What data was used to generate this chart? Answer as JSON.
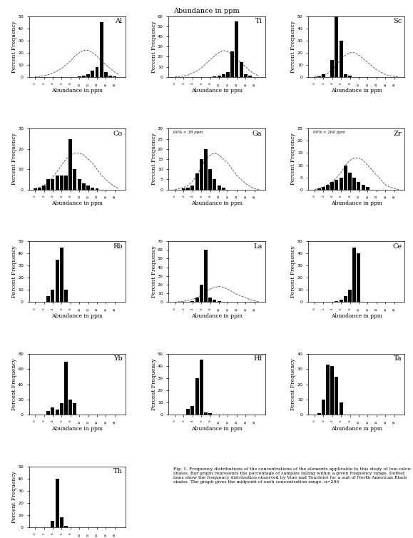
{
  "title_fontsize": 7,
  "axis_label_fontsize": 5.5,
  "tick_fontsize": 4.5,
  "element_fontsize": 7,
  "ylabel": "Percent Frequency",
  "xlabel": "Abundance in ppm",
  "plots": [
    {
      "element": "Al",
      "ylim": [
        0,
        50
      ],
      "yticks": [
        0,
        10,
        20,
        30,
        40,
        50
      ],
      "bar_values": [
        0,
        0,
        0,
        0,
        0,
        0,
        0,
        0,
        0,
        0,
        0.5,
        1,
        2,
        5,
        8,
        45,
        4,
        1,
        0.5,
        0
      ],
      "dot_values": [
        0,
        0.5,
        1,
        2,
        3,
        5,
        7,
        10,
        13,
        17,
        20,
        22,
        22,
        20,
        17,
        13,
        10,
        7,
        4,
        2
      ],
      "note": null,
      "row": 0,
      "col": 0
    },
    {
      "element": "Ti",
      "ylim": [
        0,
        60
      ],
      "yticks": [
        0,
        10,
        20,
        30,
        40,
        50,
        60
      ],
      "bar_values": [
        0,
        0,
        0,
        0,
        0,
        0,
        0,
        0,
        0,
        0.5,
        1,
        3,
        5,
        25,
        55,
        15,
        3,
        1,
        0,
        0
      ],
      "dot_values": [
        0,
        0.5,
        1,
        2,
        4,
        6,
        9,
        13,
        17,
        21,
        24,
        26,
        25,
        22,
        18,
        14,
        10,
        6,
        3,
        1
      ],
      "note": null,
      "row": 0,
      "col": 1
    },
    {
      "element": "Sc",
      "ylim": [
        0,
        50
      ],
      "yticks": [
        0,
        10,
        20,
        30,
        40,
        50
      ],
      "bar_values": [
        0,
        0.5,
        2,
        0,
        14,
        50,
        30,
        2,
        1,
        0,
        0,
        0,
        0,
        0,
        0,
        0,
        0,
        0,
        0,
        0
      ],
      "dot_values": [
        0,
        0.5,
        1.5,
        3,
        6,
        10,
        15,
        18,
        20,
        20,
        18,
        15,
        12,
        9,
        6,
        4,
        2,
        1,
        0.5,
        0
      ],
      "note": null,
      "row": 0,
      "col": 2
    },
    {
      "element": "Co",
      "ylim": [
        0,
        30
      ],
      "yticks": [
        0,
        10,
        20,
        30
      ],
      "bar_values": [
        0.5,
        1,
        2,
        5,
        5,
        7,
        7,
        7,
        25,
        10,
        5,
        3,
        2,
        1,
        0.5,
        0,
        0,
        0,
        0,
        0
      ],
      "dot_values": [
        0.5,
        1,
        2,
        4,
        6,
        9,
        12,
        15,
        17,
        18,
        18,
        17,
        15,
        13,
        10,
        7,
        5,
        3,
        1.5,
        0.5
      ],
      "note": null,
      "row": 1,
      "col": 0
    },
    {
      "element": "Ga",
      "ylim": [
        0,
        30
      ],
      "yticks": [
        0,
        5,
        10,
        15,
        20,
        25,
        30
      ],
      "bar_values": [
        0,
        0,
        0.5,
        1,
        2,
        8,
        15,
        20,
        10,
        5,
        2,
        1,
        0,
        0,
        0,
        0,
        0,
        0,
        0,
        0
      ],
      "dot_values": [
        0,
        0.5,
        1,
        2,
        4,
        7,
        11,
        15,
        17,
        18,
        17,
        15,
        13,
        10,
        7,
        5,
        3,
        1.5,
        0.5,
        0
      ],
      "note": "60% < 38 ppm",
      "row": 1,
      "col": 1
    },
    {
      "element": "Zr",
      "ylim": [
        0,
        25
      ],
      "yticks": [
        0,
        5,
        10,
        15,
        20,
        25
      ],
      "bar_values": [
        0,
        0.5,
        1,
        2,
        3,
        4,
        5,
        10,
        7,
        5,
        3,
        2,
        1,
        0,
        0,
        0,
        0,
        0,
        0,
        0
      ],
      "dot_values": [
        0,
        0.5,
        1,
        2,
        3,
        5,
        7,
        10,
        12,
        13,
        13,
        12,
        10,
        8,
        6,
        4,
        2,
        1,
        0.5,
        0
      ],
      "note": "90% < 260 ppm",
      "row": 1,
      "col": 2
    },
    {
      "element": "Rb",
      "ylim": [
        0,
        50
      ],
      "yticks": [
        0,
        10,
        20,
        30,
        40,
        50
      ],
      "bar_values": [
        0,
        0,
        0,
        5,
        10,
        35,
        45,
        10,
        0,
        0,
        0,
        0,
        0,
        0,
        0,
        0,
        0,
        0,
        0,
        0
      ],
      "dot_values": null,
      "note": null,
      "row": 2,
      "col": 0
    },
    {
      "element": "La",
      "ylim": [
        0,
        70
      ],
      "yticks": [
        0,
        10,
        20,
        30,
        40,
        50,
        60,
        70
      ],
      "bar_values": [
        0,
        0,
        0,
        0.5,
        1,
        5,
        20,
        60,
        5,
        3,
        1,
        0.5,
        0,
        0,
        0,
        0,
        0,
        0,
        0,
        0
      ],
      "dot_values": [
        0,
        0.5,
        1,
        2,
        3,
        5,
        8,
        12,
        15,
        17,
        18,
        17,
        15,
        12,
        9,
        7,
        5,
        3,
        1.5,
        0.5
      ],
      "note": null,
      "row": 2,
      "col": 1
    },
    {
      "element": "Ce",
      "ylim": [
        0,
        50
      ],
      "yticks": [
        0,
        10,
        20,
        30,
        40,
        50
      ],
      "bar_values": [
        0,
        0,
        0,
        0,
        0.5,
        1,
        2,
        5,
        10,
        45,
        40,
        0,
        0,
        0,
        0,
        0,
        0,
        0,
        0,
        0
      ],
      "dot_values": null,
      "note": null,
      "row": 2,
      "col": 2
    },
    {
      "element": "Yb",
      "ylim": [
        0,
        80
      ],
      "yticks": [
        0,
        20,
        40,
        60,
        80
      ],
      "bar_values": [
        0,
        0,
        0,
        5,
        10,
        7,
        15,
        70,
        20,
        15,
        0,
        0,
        0,
        0,
        0,
        0,
        0,
        0,
        0,
        0
      ],
      "dot_values": null,
      "note": null,
      "row": 3,
      "col": 0
    },
    {
      "element": "Hf",
      "ylim": [
        0,
        50
      ],
      "yticks": [
        0,
        10,
        20,
        30,
        40,
        50
      ],
      "bar_values": [
        0,
        0,
        0,
        5,
        7,
        30,
        45,
        2,
        1,
        0,
        0,
        0,
        0,
        0,
        0,
        0,
        0,
        0,
        0,
        0
      ],
      "dot_values": null,
      "note": null,
      "row": 3,
      "col": 1
    },
    {
      "element": "Ta",
      "ylim": [
        0,
        40
      ],
      "yticks": [
        0,
        10,
        20,
        30,
        40
      ],
      "bar_values": [
        0,
        1,
        10,
        33,
        32,
        25,
        8,
        0,
        0,
        0,
        0,
        0,
        0,
        0,
        0,
        0,
        0,
        0,
        0,
        0
      ],
      "dot_values": null,
      "note": null,
      "row": 3,
      "col": 2
    },
    {
      "element": "Th",
      "ylim": [
        0,
        50
      ],
      "yticks": [
        0,
        10,
        20,
        30,
        40,
        50
      ],
      "bar_values": [
        0,
        0,
        0,
        0,
        5,
        40,
        8,
        1,
        0,
        0,
        0,
        0,
        0,
        0,
        0,
        0,
        0,
        0,
        0,
        0
      ],
      "dot_values": null,
      "note": null,
      "row": 4,
      "col": 0
    }
  ],
  "fig_caption": "Fig. 1. Frequency distributions of the concentrations of the elements applicable to this study of low-calcic shales. Bar graph represents the percentage of samples falling within a given frequency range. Dotted lines show the frequency distribution observed by Vine and Tourtelot for a suit of North American Black shales. The graph gives the midpoint of each concentration range. n=206",
  "bar_color": "black",
  "dot_color": "black",
  "background_color": "white"
}
